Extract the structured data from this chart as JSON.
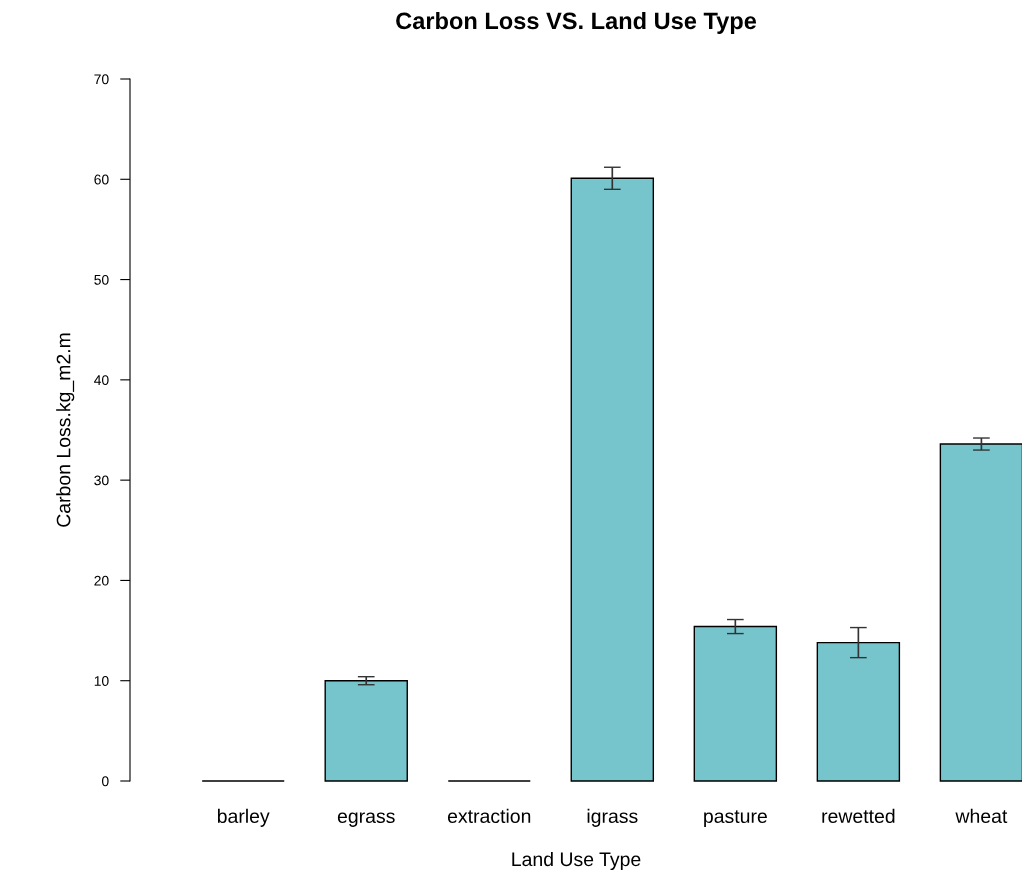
{
  "chart_data": {
    "type": "bar",
    "title": "Carbon Loss VS. Land Use Type",
    "xlabel": "Land Use Type",
    "ylabel": "Carbon Loss.kg_m2.m",
    "categories": [
      "barley",
      "egrass",
      "extraction",
      "igrass",
      "pasture",
      "rewetted",
      "wheat"
    ],
    "values": [
      0,
      10.0,
      0,
      60.1,
      15.4,
      13.8,
      33.6
    ],
    "errors": [
      null,
      0.4,
      null,
      1.1,
      0.7,
      1.5,
      0.6
    ],
    "colors": [
      "#000000",
      "#76c5cc",
      "#000000",
      "#76c5cc",
      "#76c5cc",
      "#76c5cc",
      "#76c5cc"
    ],
    "ylim": [
      0,
      70
    ],
    "yticks": [
      0,
      10,
      20,
      30,
      40,
      50,
      60,
      70
    ],
    "grid": false
  }
}
